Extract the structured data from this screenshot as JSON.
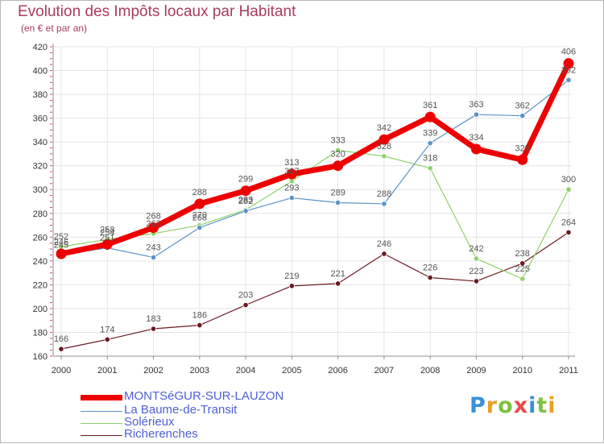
{
  "header": {
    "title": "Evolution des Impôts locaux par Habitant",
    "subtitle": "(en € et par an)"
  },
  "logo": {
    "letters": [
      "P",
      "r",
      "o",
      "x",
      "i",
      "t",
      "i"
    ],
    "colors": [
      "#3a8fd8",
      "#e8a020",
      "#7cc242",
      "#e84a4a",
      "#3a8fd8",
      "#7cc242",
      "#e8a020"
    ]
  },
  "colors": {
    "axis": "#8c8c8c",
    "grid": "#e4e4e4",
    "tick_label": "#333333",
    "tick_mark": "#c0506e",
    "data_label": "#555555"
  },
  "chart_data": {
    "type": "line",
    "title": "Evolution des Impôts locaux par Habitant",
    "subtitle": "(en € et par an)",
    "xlabel": "",
    "ylabel": "",
    "x": [
      "2000",
      "2001",
      "2002",
      "2003",
      "2004",
      "2005",
      "2006",
      "2007",
      "2008",
      "2009",
      "2010",
      "2011"
    ],
    "ylim": [
      160,
      420
    ],
    "yticks": [
      160,
      180,
      200,
      220,
      240,
      260,
      280,
      300,
      320,
      340,
      360,
      380,
      400,
      420
    ],
    "grid": true,
    "legend_position": "bottom-left",
    "series": [
      {
        "name": "Richerenches",
        "color": "#6b1a22",
        "width": 1.2,
        "marker": 3.2,
        "values": [
          166,
          174,
          183,
          186,
          203,
          219,
          221,
          246,
          226,
          223,
          238,
          264
        ],
        "labels": [
          "166",
          "174",
          "183",
          "186",
          "203",
          "219",
          "221",
          "246",
          "226",
          "223",
          "238",
          "264"
        ]
      },
      {
        "name": "Solérieux",
        "color": "#8ed16a",
        "width": 1.2,
        "marker": 3.2,
        "values": [
          252,
          258,
          263,
          270,
          283,
          307,
          333,
          328,
          318,
          242,
          225,
          300
        ],
        "labels": [
          "252",
          "258",
          "263",
          "270",
          "283",
          "307",
          "333",
          "328",
          "318",
          "242",
          "225",
          "300"
        ]
      },
      {
        "name": "La Baume-de-Transit",
        "color": "#5b93c8",
        "width": 1.2,
        "marker": 3.2,
        "values": [
          245,
          251,
          243,
          268,
          282,
          293,
          289,
          288,
          339,
          363,
          362,
          392
        ],
        "labels": [
          "245",
          "251",
          "243",
          "268",
          "282",
          "293",
          "289",
          "288",
          "339",
          "363",
          "362",
          "392"
        ]
      },
      {
        "name": "MONTSéGUR-SUR-LAUZON",
        "color": "#ee0000",
        "width": 7,
        "marker": 6.5,
        "values": [
          246,
          254,
          268,
          288,
          299,
          313,
          320,
          342,
          361,
          334,
          325,
          406
        ],
        "labels": [
          "246",
          "254",
          "268",
          "288",
          "299",
          "313",
          "320",
          "342",
          "361",
          "334",
          "325",
          "406"
        ]
      }
    ],
    "legend": [
      "MONTSéGUR-SUR-LAUZON",
      "La Baume-de-Transit",
      "Solérieux",
      "Richerenches"
    ]
  }
}
